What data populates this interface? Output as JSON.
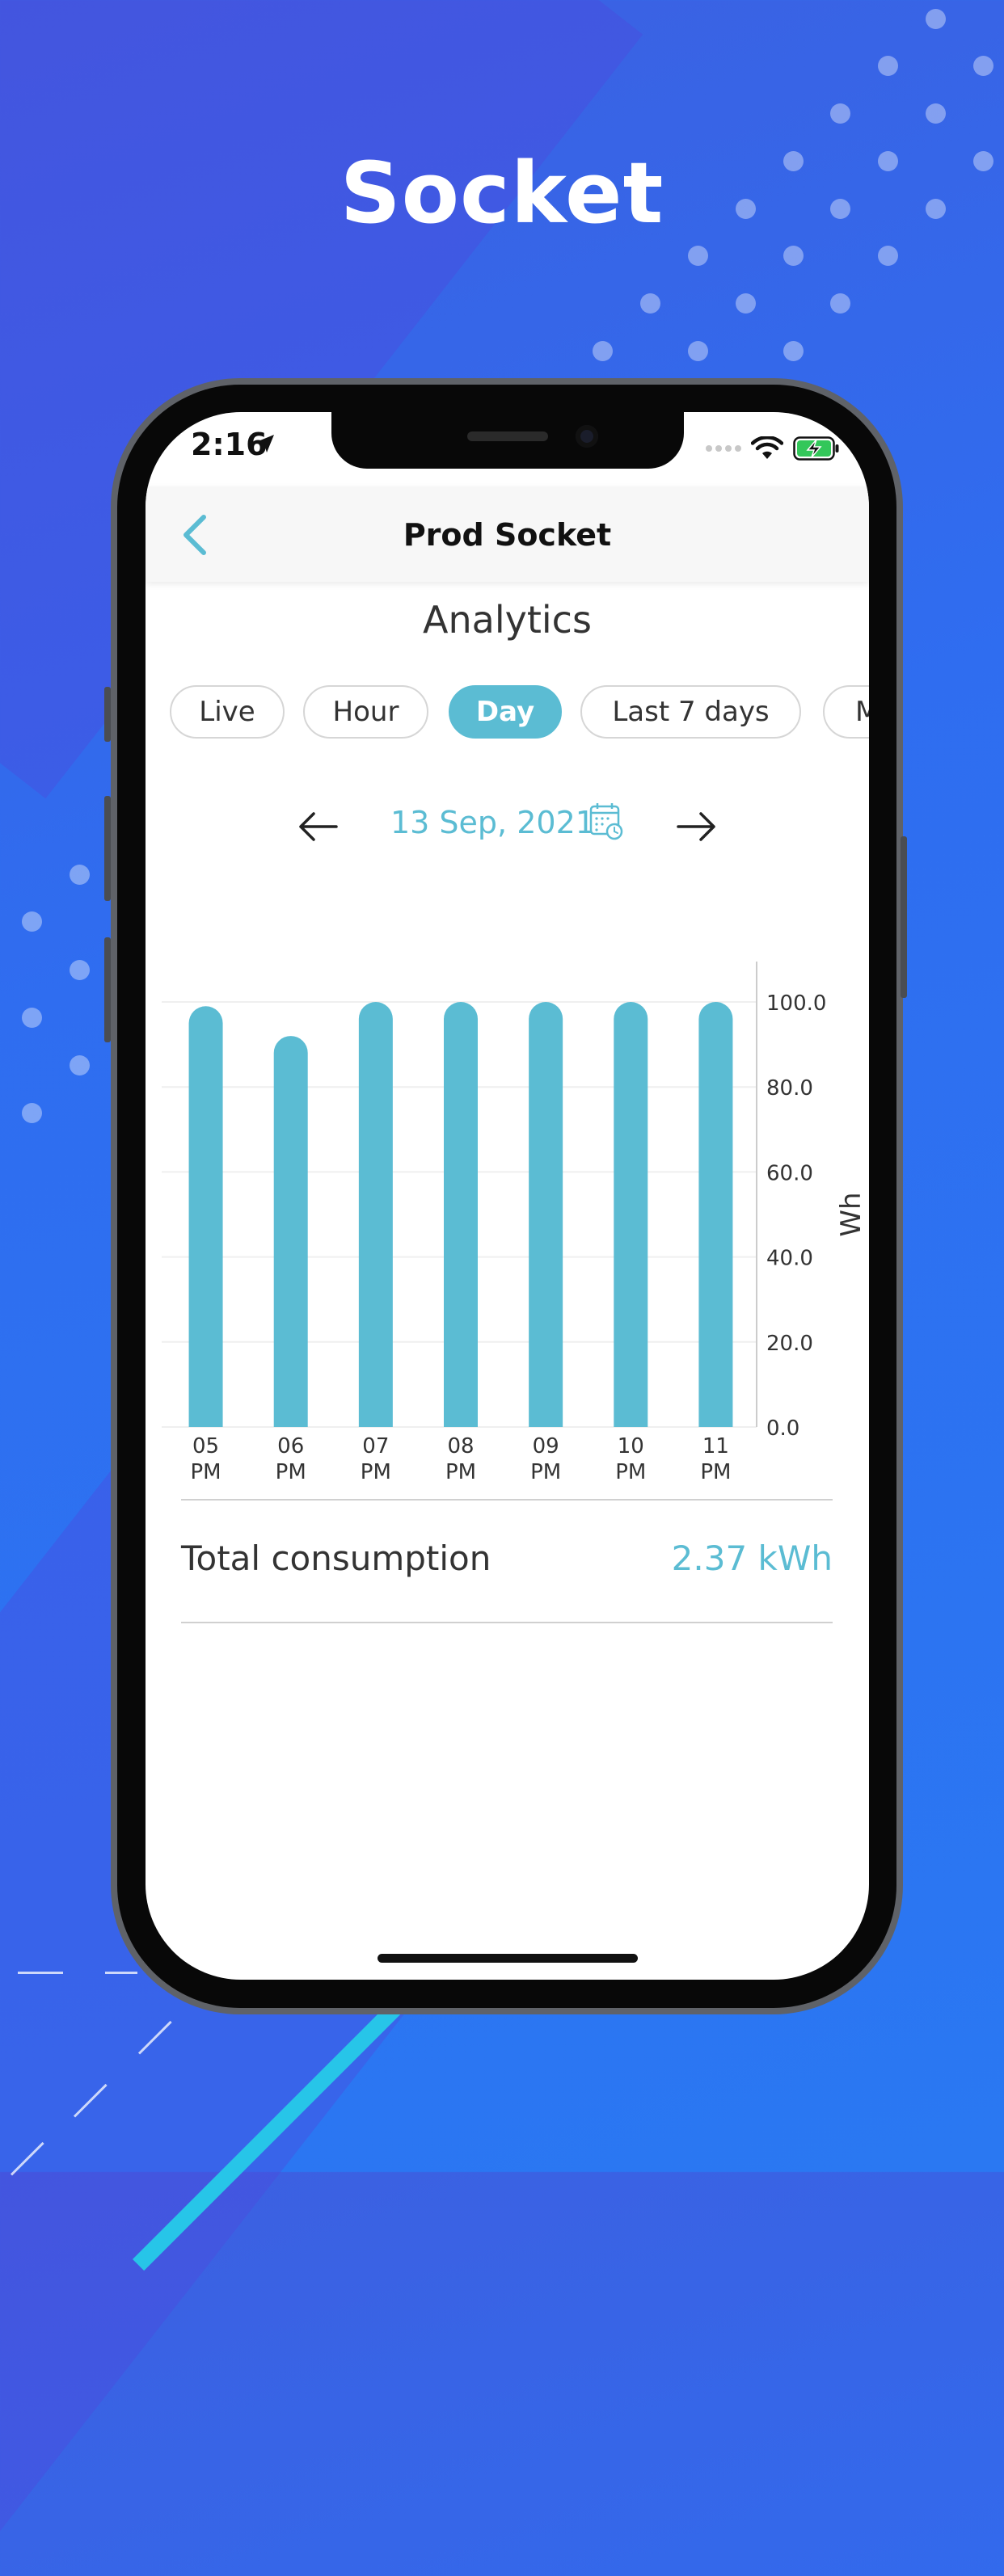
{
  "poster": {
    "title": "Socket"
  },
  "status_bar": {
    "time": "2:16"
  },
  "navbar": {
    "title": "Prod Socket"
  },
  "page": {
    "heading": "Analytics"
  },
  "tabs": [
    {
      "label": "Live",
      "active": false
    },
    {
      "label": "Hour",
      "active": false
    },
    {
      "label": "Day",
      "active": true
    },
    {
      "label": "Last 7 days",
      "active": false
    },
    {
      "label": "M",
      "active": false
    }
  ],
  "date_nav": {
    "date": "13 Sep, 2021"
  },
  "chart_data": {
    "type": "bar",
    "categories": [
      [
        "05",
        "PM"
      ],
      [
        "06",
        "PM"
      ],
      [
        "07",
        "PM"
      ],
      [
        "08",
        "PM"
      ],
      [
        "09",
        "PM"
      ],
      [
        "10",
        "PM"
      ],
      [
        "11",
        "PM"
      ]
    ],
    "values": [
      99,
      92,
      100,
      100,
      100,
      100,
      100
    ],
    "y_ticks": [
      "0.0",
      "20.0",
      "40.0",
      "60.0",
      "80.0",
      "100.0"
    ],
    "ylim": [
      0,
      100
    ],
    "ylabel": "Wh",
    "y_axis_position": "right",
    "bar_color": "#5bbcd3",
    "grid": true
  },
  "summary": {
    "label": "Total consumption",
    "value": "2.37 kWh"
  },
  "colors": {
    "accent": "#5bbcd3",
    "background": "#2f6df0"
  }
}
